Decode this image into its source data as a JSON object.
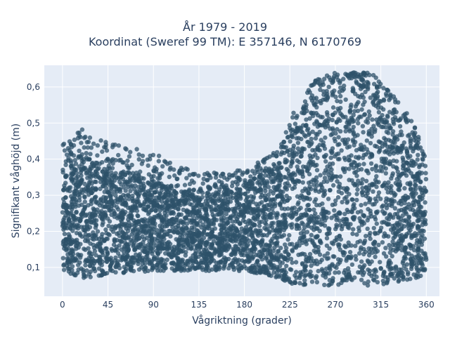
{
  "chart_data": {
    "type": "scatter",
    "title_line1": "År 1979 - 2019",
    "title_line2": "Koordinat (Sweref 99 TM): E 357146, N 6170769",
    "xlabel": "Vågriktning (grader)",
    "ylabel": "Signifikant våghöjd (m)",
    "xlim": [
      -18,
      373
    ],
    "ylim": [
      0.02,
      0.66
    ],
    "xticks": [
      0,
      45,
      90,
      135,
      180,
      225,
      270,
      315,
      360
    ],
    "xtick_labels": [
      "0",
      "45",
      "90",
      "135",
      "180",
      "225",
      "270",
      "315",
      "360"
    ],
    "yticks": [
      0.1,
      0.2,
      0.3,
      0.4,
      0.5,
      0.6
    ],
    "ytick_labels": [
      "0,1",
      "0,2",
      "0,3",
      "0,4",
      "0,5",
      "0,6"
    ],
    "grid": true,
    "legend": "none",
    "marker_color": "#2e5169",
    "envelope": {
      "direction": [
        0,
        20,
        45,
        90,
        135,
        180,
        215,
        230,
        250,
        270,
        290,
        305,
        320,
        335,
        350,
        360
      ],
      "lower": [
        0.09,
        0.07,
        0.08,
        0.09,
        0.09,
        0.09,
        0.07,
        0.05,
        0.05,
        0.05,
        0.05,
        0.05,
        0.05,
        0.06,
        0.07,
        0.08
      ],
      "upper": [
        0.36,
        0.42,
        0.38,
        0.34,
        0.3,
        0.33,
        0.39,
        0.5,
        0.58,
        0.61,
        0.63,
        0.62,
        0.58,
        0.5,
        0.45,
        0.36
      ],
      "outlier_max": [
        0.44,
        0.49,
        0.45,
        0.42,
        0.36,
        0.37,
        0.43,
        0.55,
        0.62,
        0.64,
        0.64,
        0.64,
        0.6,
        0.55,
        0.49,
        0.4
      ]
    }
  },
  "colors": {
    "plot_bg": "#e5ecf6",
    "grid": "#ffffff",
    "text": "#2a3f5f"
  }
}
